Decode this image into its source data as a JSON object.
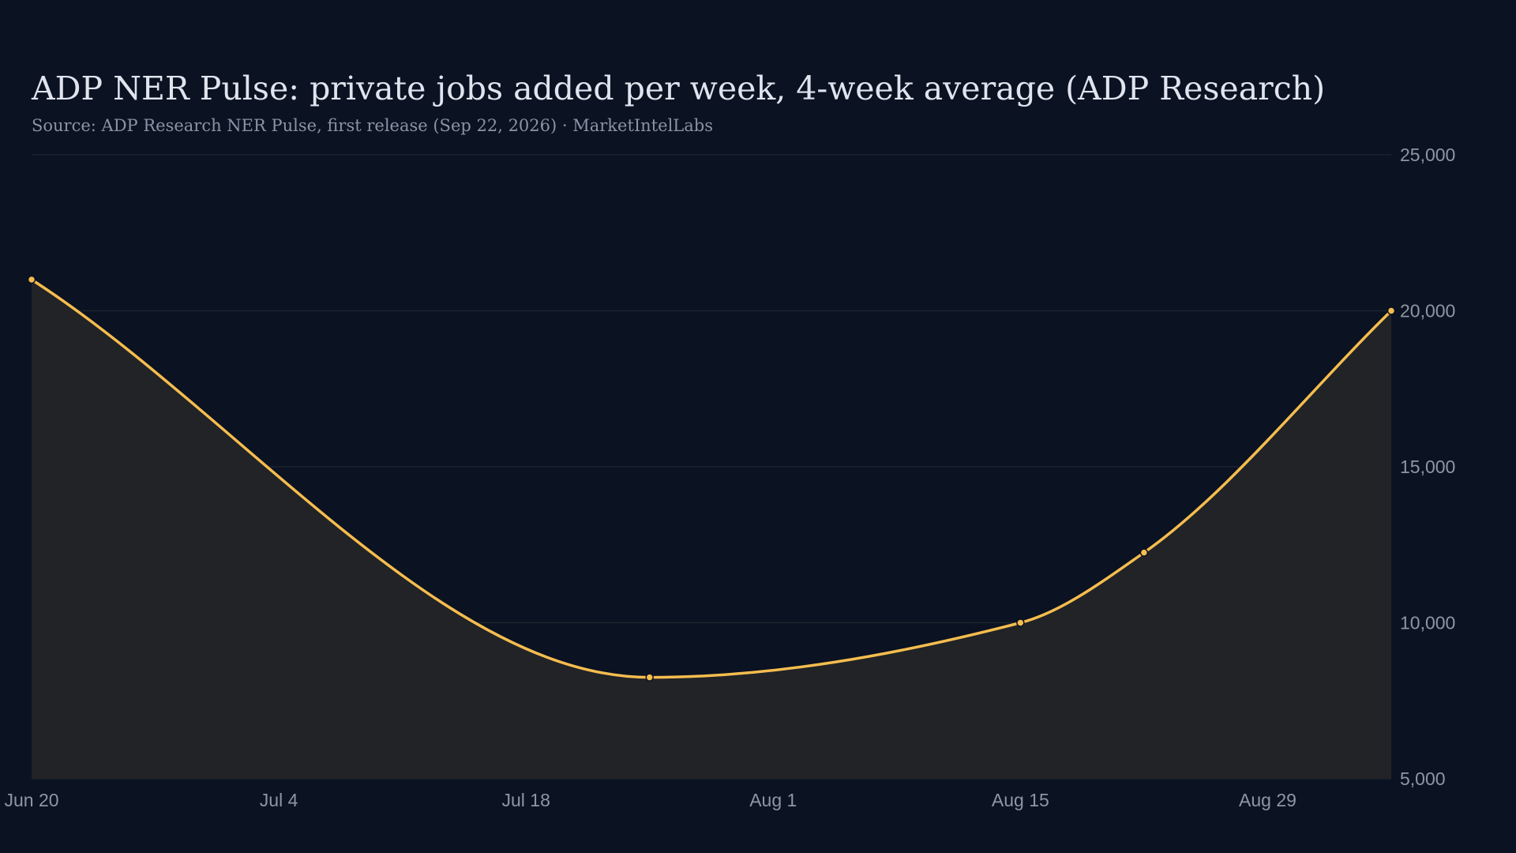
{
  "chart_data": {
    "type": "area",
    "title": "ADP NER Pulse: private jobs added per week, 4-week average (ADP Research)",
    "subtitle": "Source: ADP Research NER Pulse, first release (Sep 22, 2026) · MarketIntelLabs",
    "xlabel": "",
    "ylabel": "",
    "x_tick_labels": [
      "Jun 20",
      "Jul 4",
      "Jul 18",
      "Aug 1",
      "Aug 15",
      "Aug 29"
    ],
    "x_ticks": [
      "2026-06-20",
      "2026-07-04",
      "2026-07-18",
      "2026-08-01",
      "2026-08-15",
      "2026-08-29"
    ],
    "xlim": [
      "2026-06-20",
      "2026-09-05"
    ],
    "y_tick_labels": [
      "25,000",
      "20,000",
      "15,000",
      "10,000",
      "5,000"
    ],
    "y_ticks": [
      25000,
      20000,
      15000,
      10000,
      5000
    ],
    "ylim": [
      5000,
      25000
    ],
    "grid": true,
    "y_axis_side": "right",
    "series": [
      {
        "x": [
          "2026-06-20",
          "2026-07-25",
          "2026-08-15",
          "2026-08-22",
          "2026-09-05"
        ],
        "values": [
          21000,
          8250,
          10000,
          12250,
          20000
        ]
      }
    ],
    "colors": {
      "line": "#f5bd4f",
      "fill": "#212326",
      "grid": "#1f2733",
      "background": "#0b1221"
    }
  }
}
